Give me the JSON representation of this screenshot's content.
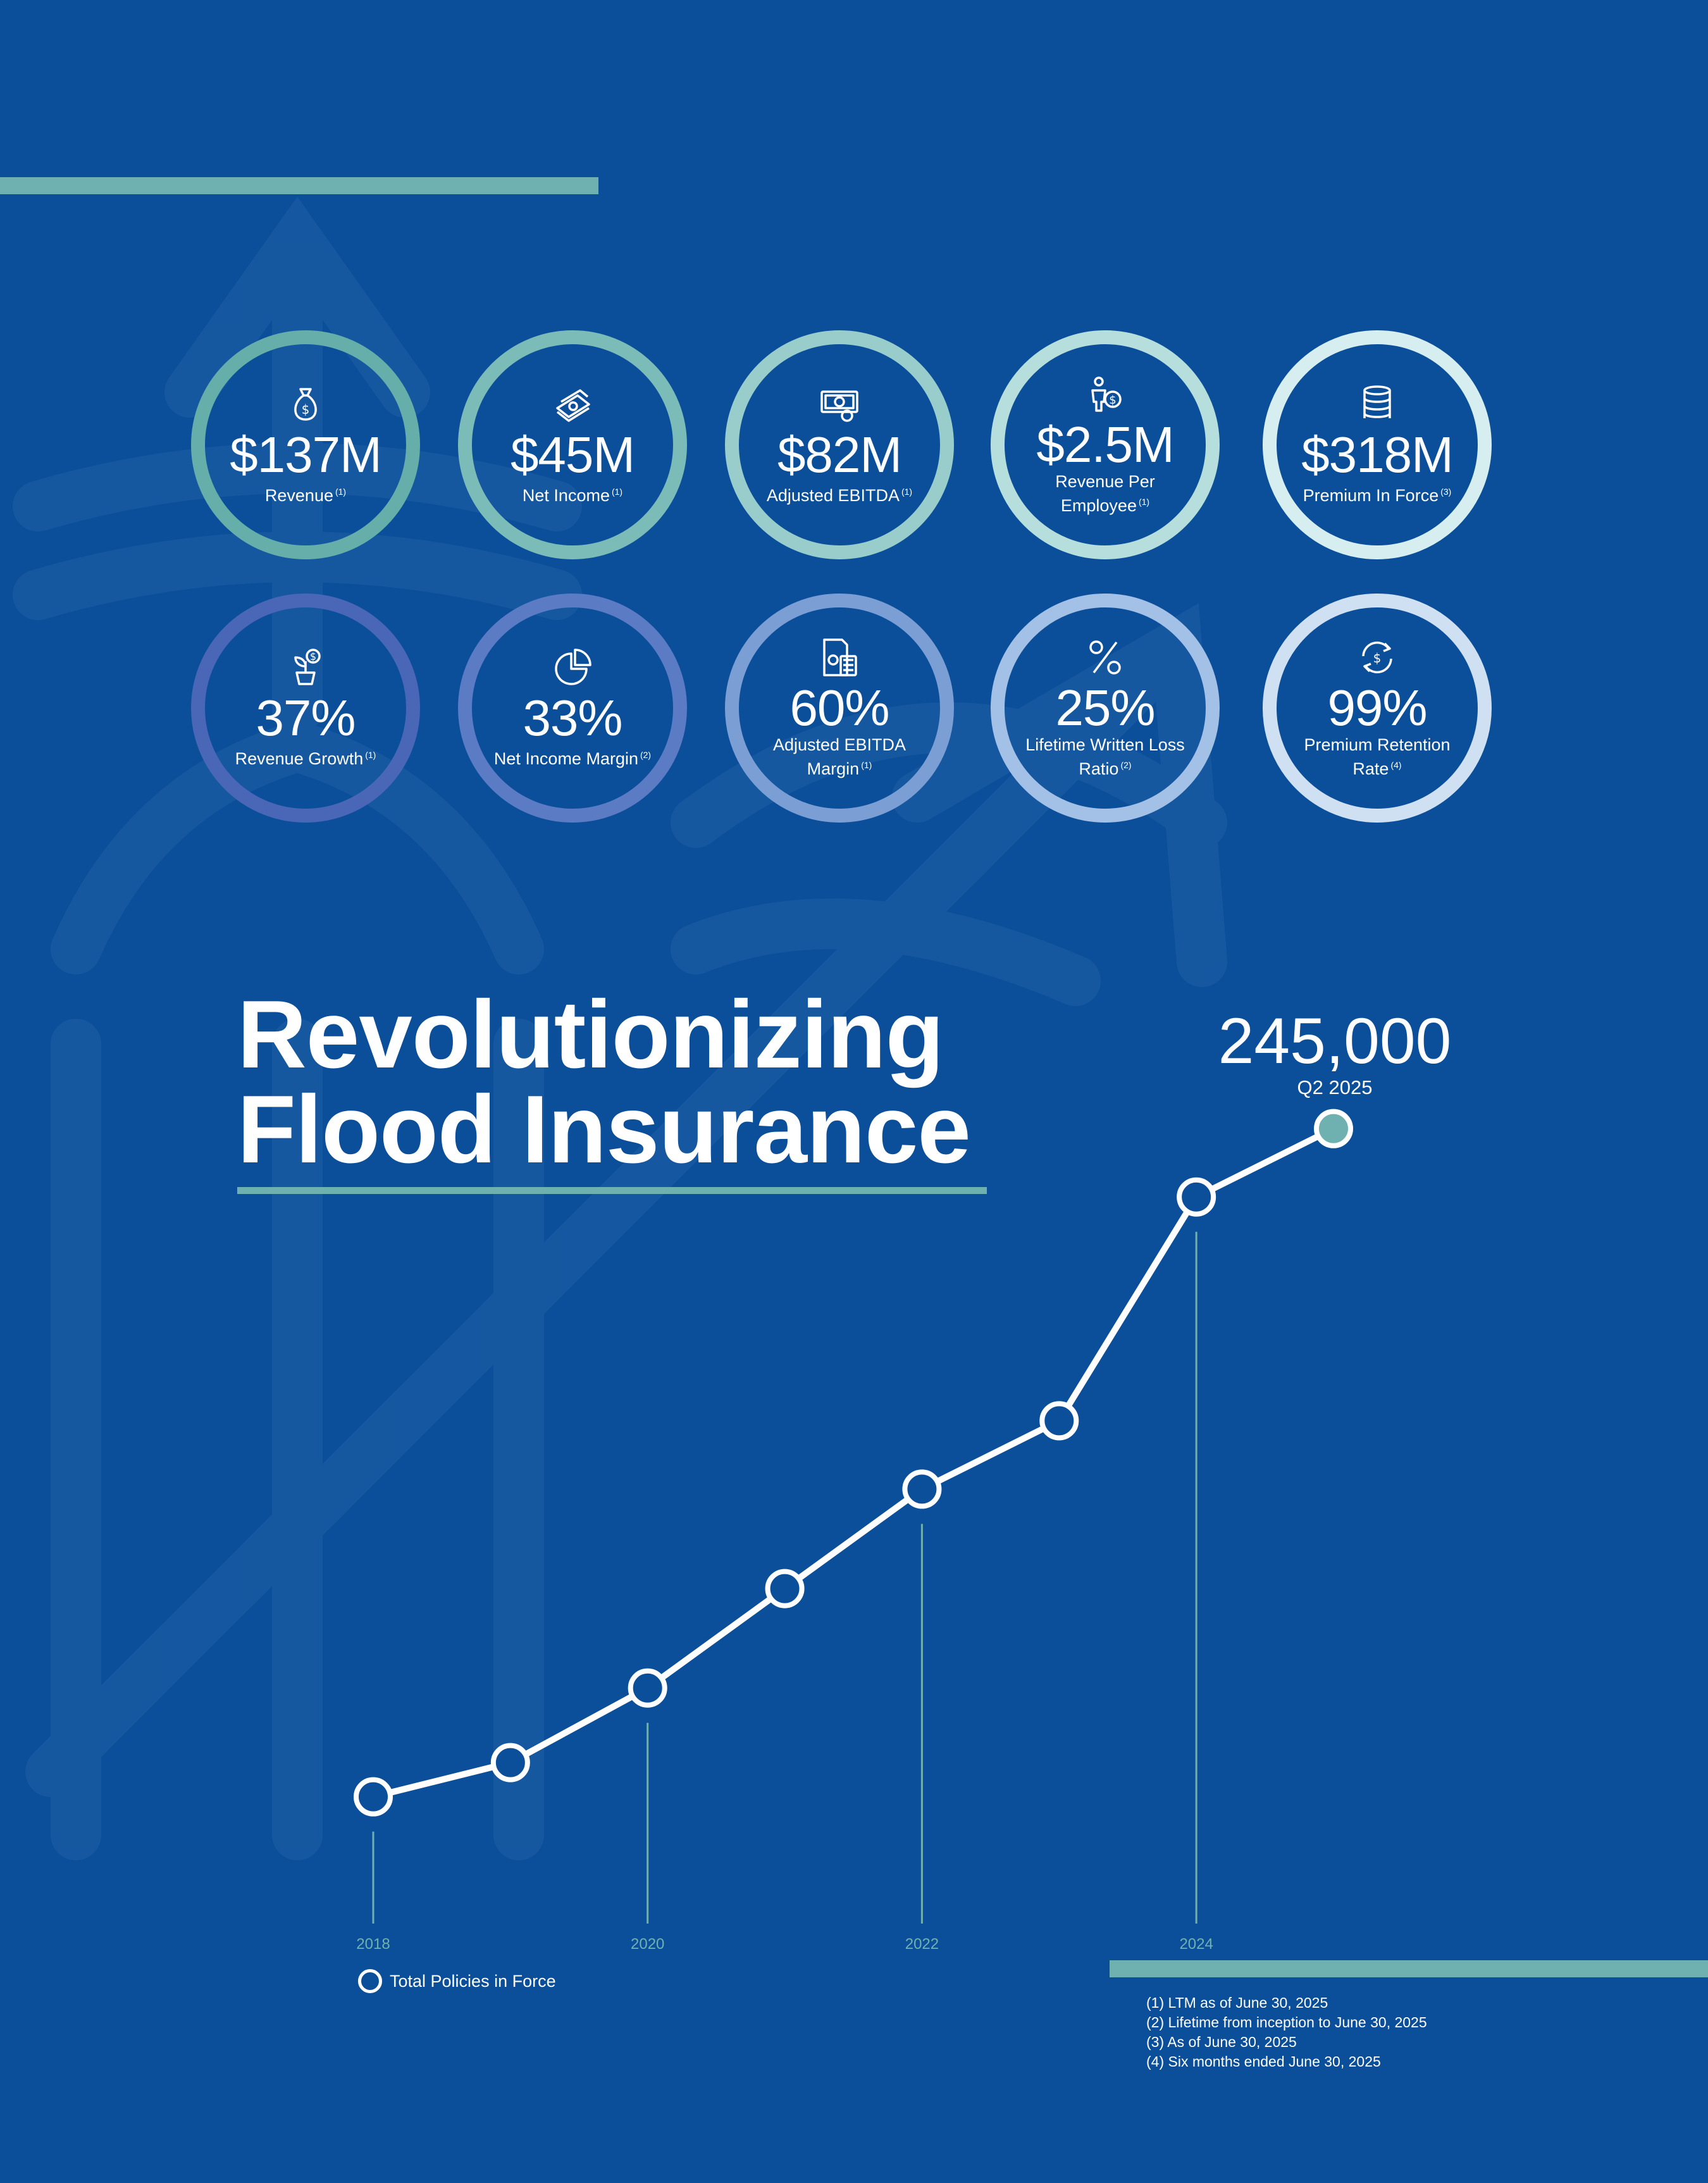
{
  "metrics_row1": [
    {
      "value": "$137M",
      "label": "Revenue",
      "note": "(1)",
      "icon": "money-bag-icon",
      "ring_color": "#65aeaa"
    },
    {
      "value": "$45M",
      "label": "Net Income",
      "note": "(1)",
      "icon": "cash-stack-icon",
      "ring_color": "#7bbcb9"
    },
    {
      "value": "$82M",
      "label": "Adjusted EBITDA",
      "note": "(1)",
      "icon": "banknote-icon",
      "ring_color": "#98cdcc"
    },
    {
      "value": "$2.5M",
      "label": "Revenue Per Employee",
      "note": "(1)",
      "icon": "person-dollar-icon",
      "ring_color": "#b5dedd"
    },
    {
      "value": "$318M",
      "label": "Premium In Force",
      "note": "(3)",
      "icon": "coin-stack-icon",
      "ring_color": "#d6eef0"
    }
  ],
  "metrics_row2": [
    {
      "value": "37%",
      "label": "Revenue Growth",
      "note": "(1)",
      "icon": "plant-dollar-icon",
      "ring_color": "#4a67b7"
    },
    {
      "value": "33%",
      "label": "Net Income Margin",
      "note": "(2)",
      "icon": "pie-chart-icon",
      "ring_color": "#5b7cc4"
    },
    {
      "value": "60%",
      "label": "Adjusted EBITDA Margin",
      "note": "(1)",
      "icon": "calculator-document-icon",
      "ring_color": "#7b9fd5"
    },
    {
      "value": "25%",
      "label": "Lifetime Written Loss Ratio",
      "note": "(2)",
      "icon": "percent-icon",
      "ring_color": "#a3c0e6"
    },
    {
      "value": "99%",
      "label": "Premium Retention Rate",
      "note": "(4)",
      "icon": "refresh-dollar-icon",
      "ring_color": "#cfe0f3"
    }
  ],
  "headline": {
    "line1": "Revolutionizing",
    "line2": "Flood Insurance"
  },
  "callout": {
    "value": "245,000",
    "label": "Q2 2025"
  },
  "legend": {
    "label": "Total Policies in Force"
  },
  "footnotes": [
    "(1) LTM as of June 30, 2025",
    "(2) Lifetime from inception to June 30, 2025",
    "(3) As of June 30, 2025",
    "(4) Six months ended June 30, 2025"
  ],
  "colors": {
    "background": "#0b4f9a",
    "accent": "#6fb1b0",
    "line": "#ffffff",
    "highlight_point": "#6fb1b0"
  },
  "chart_data": {
    "type": "line",
    "x": [
      2018,
      2019,
      2020,
      2021,
      2022,
      2023,
      2024,
      2025
    ],
    "tick_labels": [
      "2018",
      "2020",
      "2022",
      "2024"
    ],
    "series": [
      {
        "name": "Total Policies in Force",
        "values": [
          30000,
          41000,
          65000,
          97000,
          129000,
          151000,
          223000,
          245000
        ]
      }
    ],
    "highlight": {
      "x": 2025,
      "value": 245000,
      "label": "Q2 2025"
    },
    "xlim": [
      2018,
      2025
    ],
    "ylim": [
      0,
      260000
    ],
    "grid": false,
    "legend_position": "bottom-left"
  }
}
